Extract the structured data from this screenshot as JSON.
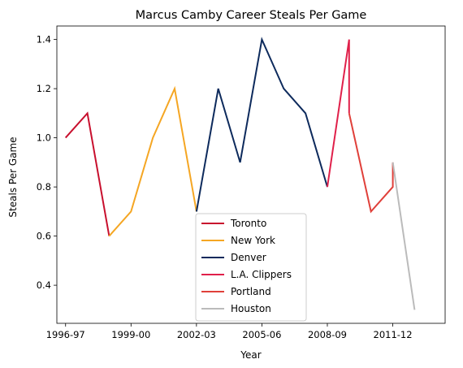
{
  "chart_data": {
    "type": "line",
    "title": "Marcus Camby Career Steals Per Game",
    "xlabel": "Year",
    "ylabel": "Steals Per Game",
    "x_tick_labels": [
      "1996-97",
      "1999-00",
      "2002-03",
      "2005-06",
      "2008-09",
      "2011-12"
    ],
    "y_ticks": [
      0.4,
      0.6,
      0.8,
      1.0,
      1.2,
      1.4
    ],
    "y_tick_labels": [
      "0.4",
      "0.6",
      "0.8",
      "1.0",
      "1.2",
      "1.4"
    ],
    "xlim": [
      1995.6,
      2013.4
    ],
    "ylim": [
      0.245,
      1.455
    ],
    "grid": false,
    "legend_position": "lower center",
    "series": [
      {
        "name": "Toronto",
        "color": "#c8102e",
        "x": [
          1996,
          1997,
          1998
        ],
        "y": [
          1.0,
          1.1,
          0.6
        ]
      },
      {
        "name": "New York",
        "color": "#f5a623",
        "x": [
          1998,
          1999,
          2000,
          2001,
          2002
        ],
        "y": [
          0.6,
          0.7,
          1.0,
          1.2,
          0.7
        ]
      },
      {
        "name": "Denver",
        "color": "#0d2a5c",
        "x": [
          2002,
          2003,
          2004,
          2005,
          2006,
          2007,
          2008
        ],
        "y": [
          0.7,
          1.2,
          0.9,
          1.4,
          1.2,
          1.1,
          0.8
        ]
      },
      {
        "name": "L.A. Clippers",
        "color": "#e0204a",
        "x": [
          2008,
          2009,
          2009
        ],
        "y": [
          0.8,
          1.4,
          1.1
        ]
      },
      {
        "name": "Portland",
        "color": "#e0403a",
        "x": [
          2009,
          2010,
          2011,
          2011
        ],
        "y": [
          1.1,
          0.7,
          0.8,
          0.9
        ]
      },
      {
        "name": "Houston",
        "color": "#bbbbbb",
        "x": [
          2011,
          2012
        ],
        "y": [
          0.9,
          0.3
        ]
      }
    ]
  }
}
